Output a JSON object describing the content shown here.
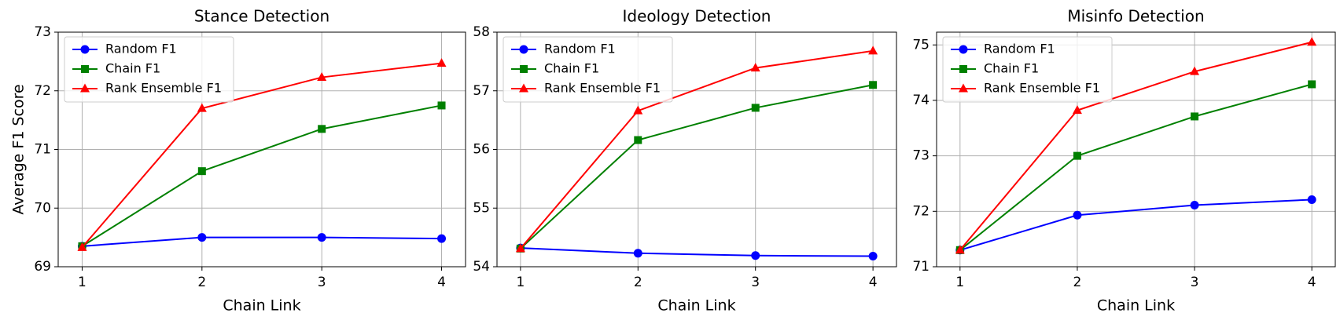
{
  "chart_data": [
    {
      "type": "line",
      "title": "Stance Detection",
      "xlabel": "Chain Link",
      "ylabel": "Average F1 Score",
      "x": [
        1,
        2,
        3,
        4
      ],
      "xlim": [
        0.8,
        4.2
      ],
      "xticks": [
        1,
        2,
        3,
        4
      ],
      "ylim": [
        69,
        73
      ],
      "yticks": [
        69,
        70,
        71,
        72,
        73
      ],
      "grid": true,
      "legend": "upper left",
      "series": [
        {
          "name": "Random F1",
          "color": "#0000ff",
          "marker": "circle",
          "values": [
            69.35,
            69.5,
            69.5,
            69.48
          ]
        },
        {
          "name": "Chain F1",
          "color": "#008000",
          "marker": "square",
          "values": [
            69.35,
            70.63,
            71.35,
            71.75
          ]
        },
        {
          "name": "Rank Ensemble F1",
          "color": "#ff0000",
          "marker": "triangle",
          "values": [
            69.33,
            71.7,
            72.23,
            72.47
          ]
        }
      ]
    },
    {
      "type": "line",
      "title": "Ideology Detection",
      "xlabel": "Chain Link",
      "x": [
        1,
        2,
        3,
        4
      ],
      "xlim": [
        0.8,
        4.2
      ],
      "xticks": [
        1,
        2,
        3,
        4
      ],
      "ylim": [
        54,
        58
      ],
      "yticks": [
        54,
        55,
        56,
        57,
        58
      ],
      "grid": true,
      "legend": "upper left",
      "series": [
        {
          "name": "Random F1",
          "color": "#0000ff",
          "marker": "circle",
          "values": [
            54.32,
            54.23,
            54.19,
            54.18
          ]
        },
        {
          "name": "Chain F1",
          "color": "#008000",
          "marker": "square",
          "values": [
            54.31,
            56.16,
            56.71,
            57.1
          ]
        },
        {
          "name": "Rank Ensemble F1",
          "color": "#ff0000",
          "marker": "triangle",
          "values": [
            54.31,
            56.66,
            57.39,
            57.68
          ]
        }
      ]
    },
    {
      "type": "line",
      "title": "Misinfo Detection",
      "xlabel": "Chain Link",
      "x": [
        1,
        2,
        3,
        4
      ],
      "xlim": [
        0.8,
        4.2
      ],
      "xticks": [
        1,
        2,
        3,
        4
      ],
      "ylim": [
        71,
        75.23
      ],
      "yticks": [
        71,
        72,
        73,
        74,
        75
      ],
      "grid": true,
      "legend": "upper left",
      "series": [
        {
          "name": "Random F1",
          "color": "#0000ff",
          "marker": "circle",
          "values": [
            71.3,
            71.93,
            72.11,
            72.21
          ]
        },
        {
          "name": "Chain F1",
          "color": "#008000",
          "marker": "square",
          "values": [
            71.3,
            73.0,
            73.71,
            74.29
          ]
        },
        {
          "name": "Rank Ensemble F1",
          "color": "#ff0000",
          "marker": "triangle",
          "values": [
            71.3,
            73.82,
            74.52,
            75.05
          ]
        }
      ]
    }
  ]
}
